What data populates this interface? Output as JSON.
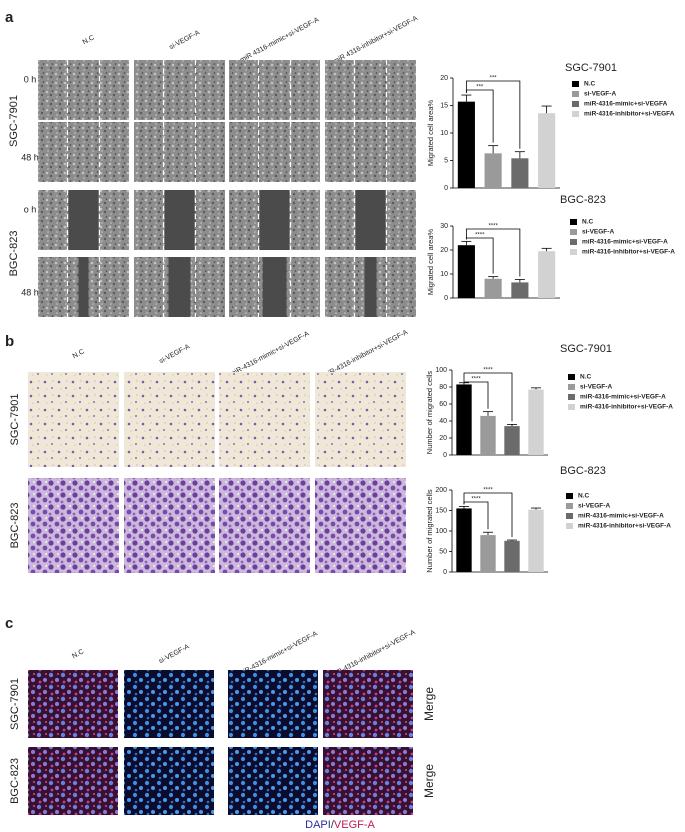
{
  "panels": {
    "a": {
      "label": "a",
      "columns": [
        "N.C",
        "si-VEGF-A",
        "miR 4316-mimic+si-VEGF-A",
        "miR 4316-inhibitor+si-VEGF-A"
      ],
      "rows": [
        {
          "cell_line": "SGC-7901",
          "times": [
            "0 h",
            "48 h"
          ]
        },
        {
          "cell_line": "BGC-823",
          "times": [
            "o h",
            "48 h"
          ]
        }
      ]
    },
    "b": {
      "label": "b",
      "columns": [
        "N.C",
        "si-VEGF-A",
        "miR-4316-mimic+si-VEGF-A",
        "miR-4316-inhibitor+si-VEGF-A"
      ],
      "rows": [
        "SGC-7901",
        "BGC-823"
      ]
    },
    "c": {
      "label": "c",
      "columns": [
        "N.C",
        "si-VEGF-A",
        "miR-4316-mimic+si-VEGF-A",
        "miR-4316-inhibitor+si-VEGF-A"
      ],
      "rows": [
        "SGC-7901",
        "BGC-823"
      ],
      "row_notes": [
        "Merge",
        "Merge"
      ],
      "stain_label": [
        "DAPI",
        "/",
        "VEGF-A"
      ]
    }
  },
  "chart_data": [
    {
      "type": "bar",
      "title": "SGC-7901",
      "ylabel": "Migrated cell area%",
      "categories": [
        "N.C",
        "si-VEGF-A",
        "miR-4316-mimic+si-VEGFA",
        "miR-4316-inhibitor+si-VEGFA"
      ],
      "values": [
        15.7,
        6.3,
        5.4,
        13.6
      ],
      "errors": [
        1.2,
        1.4,
        1.2,
        1.3
      ],
      "colors": [
        "#000000",
        "#9a9a9a",
        "#6b6b6b",
        "#d2d2d2"
      ],
      "ylim": [
        0,
        20
      ],
      "yticks": [
        0,
        5,
        10,
        15,
        20
      ],
      "annotations": [
        "***",
        "***"
      ]
    },
    {
      "type": "bar",
      "title": "BGC-823",
      "ylabel": "Migrated cell area%",
      "categories": [
        "N.C",
        "si-VEGF-A",
        "miR-4316-mimic+si-VEGF-A",
        "miR-4316-inhibitor+si-VEGF-A"
      ],
      "values": [
        22,
        8,
        6.5,
        19.5
      ],
      "errors": [
        1.6,
        0.9,
        1.2,
        1.2
      ],
      "colors": [
        "#000000",
        "#9a9a9a",
        "#6b6b6b",
        "#d2d2d2"
      ],
      "ylim": [
        0,
        30
      ],
      "yticks": [
        0,
        10,
        20,
        30
      ],
      "annotations": [
        "****",
        "****"
      ]
    },
    {
      "type": "bar",
      "title": "SGC-7901",
      "ylabel": "Number of migrated cells",
      "categories": [
        "N.C",
        "si-VEGF-A",
        "miR-4316-mimic+si-VEGF-A",
        "miR-4316-inhibitor+si-VEGF-A"
      ],
      "values": [
        83,
        46,
        34,
        77
      ],
      "errors": [
        2,
        5,
        2,
        2
      ],
      "colors": [
        "#000000",
        "#9a9a9a",
        "#6b6b6b",
        "#d2d2d2"
      ],
      "ylim": [
        0,
        100
      ],
      "yticks": [
        0,
        20,
        40,
        60,
        80,
        100
      ],
      "annotations": [
        "****",
        "****"
      ]
    },
    {
      "type": "bar",
      "title": "BGC-823",
      "ylabel": "Number of migrated cells",
      "categories": [
        "N.C",
        "si-VEGF-A",
        "miR-4316-mimic+si-VEGF-A",
        "miR-4316-inhibitor+si-VEGF-A"
      ],
      "values": [
        155,
        90,
        76,
        152
      ],
      "errors": [
        5,
        7,
        2,
        4
      ],
      "colors": [
        "#000000",
        "#9a9a9a",
        "#6b6b6b",
        "#d2d2d2"
      ],
      "ylim": [
        0,
        200
      ],
      "yticks": [
        0,
        50,
        100,
        150,
        200
      ],
      "annotations": [
        "****",
        "****"
      ]
    }
  ]
}
